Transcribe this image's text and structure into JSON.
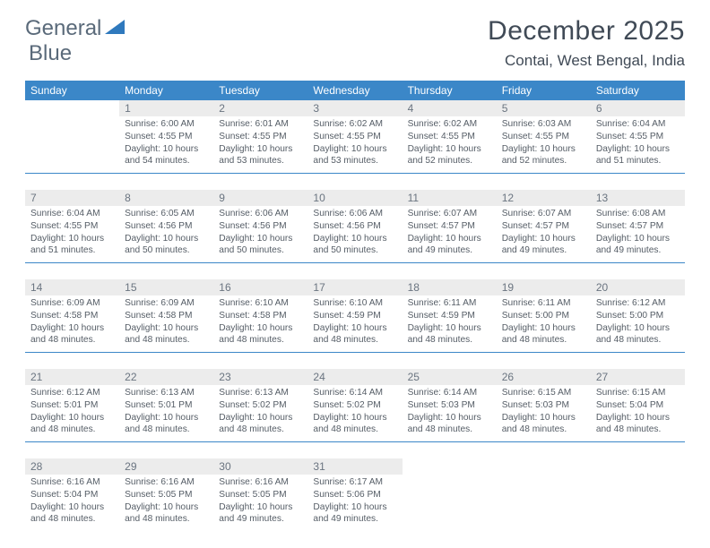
{
  "logo": {
    "word1": "General",
    "word2": "Blue"
  },
  "title": "December 2025",
  "location": "Contai, West Bengal, India",
  "colors": {
    "header_bg": "#3b87c8",
    "header_text": "#ffffff",
    "daynum_bg": "#ececec",
    "daynum_text": "#6a7480",
    "cell_text": "#555d66",
    "rule": "#3b87c8",
    "title_text": "#404a56",
    "logo_text": "#5a6a7a",
    "logo_shape": "#2f79bd"
  },
  "weekdays": [
    "Sunday",
    "Monday",
    "Tuesday",
    "Wednesday",
    "Thursday",
    "Friday",
    "Saturday"
  ],
  "weeks": [
    {
      "days": [
        null,
        {
          "n": "1",
          "sr": "6:00 AM",
          "ss": "4:55 PM",
          "dl": "10 hours and 54 minutes."
        },
        {
          "n": "2",
          "sr": "6:01 AM",
          "ss": "4:55 PM",
          "dl": "10 hours and 53 minutes."
        },
        {
          "n": "3",
          "sr": "6:02 AM",
          "ss": "4:55 PM",
          "dl": "10 hours and 53 minutes."
        },
        {
          "n": "4",
          "sr": "6:02 AM",
          "ss": "4:55 PM",
          "dl": "10 hours and 52 minutes."
        },
        {
          "n": "5",
          "sr": "6:03 AM",
          "ss": "4:55 PM",
          "dl": "10 hours and 52 minutes."
        },
        {
          "n": "6",
          "sr": "6:04 AM",
          "ss": "4:55 PM",
          "dl": "10 hours and 51 minutes."
        }
      ]
    },
    {
      "days": [
        {
          "n": "7",
          "sr": "6:04 AM",
          "ss": "4:55 PM",
          "dl": "10 hours and 51 minutes."
        },
        {
          "n": "8",
          "sr": "6:05 AM",
          "ss": "4:56 PM",
          "dl": "10 hours and 50 minutes."
        },
        {
          "n": "9",
          "sr": "6:06 AM",
          "ss": "4:56 PM",
          "dl": "10 hours and 50 minutes."
        },
        {
          "n": "10",
          "sr": "6:06 AM",
          "ss": "4:56 PM",
          "dl": "10 hours and 50 minutes."
        },
        {
          "n": "11",
          "sr": "6:07 AM",
          "ss": "4:57 PM",
          "dl": "10 hours and 49 minutes."
        },
        {
          "n": "12",
          "sr": "6:07 AM",
          "ss": "4:57 PM",
          "dl": "10 hours and 49 minutes."
        },
        {
          "n": "13",
          "sr": "6:08 AM",
          "ss": "4:57 PM",
          "dl": "10 hours and 49 minutes."
        }
      ]
    },
    {
      "days": [
        {
          "n": "14",
          "sr": "6:09 AM",
          "ss": "4:58 PM",
          "dl": "10 hours and 48 minutes."
        },
        {
          "n": "15",
          "sr": "6:09 AM",
          "ss": "4:58 PM",
          "dl": "10 hours and 48 minutes."
        },
        {
          "n": "16",
          "sr": "6:10 AM",
          "ss": "4:58 PM",
          "dl": "10 hours and 48 minutes."
        },
        {
          "n": "17",
          "sr": "6:10 AM",
          "ss": "4:59 PM",
          "dl": "10 hours and 48 minutes."
        },
        {
          "n": "18",
          "sr": "6:11 AM",
          "ss": "4:59 PM",
          "dl": "10 hours and 48 minutes."
        },
        {
          "n": "19",
          "sr": "6:11 AM",
          "ss": "5:00 PM",
          "dl": "10 hours and 48 minutes."
        },
        {
          "n": "20",
          "sr": "6:12 AM",
          "ss": "5:00 PM",
          "dl": "10 hours and 48 minutes."
        }
      ]
    },
    {
      "days": [
        {
          "n": "21",
          "sr": "6:12 AM",
          "ss": "5:01 PM",
          "dl": "10 hours and 48 minutes."
        },
        {
          "n": "22",
          "sr": "6:13 AM",
          "ss": "5:01 PM",
          "dl": "10 hours and 48 minutes."
        },
        {
          "n": "23",
          "sr": "6:13 AM",
          "ss": "5:02 PM",
          "dl": "10 hours and 48 minutes."
        },
        {
          "n": "24",
          "sr": "6:14 AM",
          "ss": "5:02 PM",
          "dl": "10 hours and 48 minutes."
        },
        {
          "n": "25",
          "sr": "6:14 AM",
          "ss": "5:03 PM",
          "dl": "10 hours and 48 minutes."
        },
        {
          "n": "26",
          "sr": "6:15 AM",
          "ss": "5:03 PM",
          "dl": "10 hours and 48 minutes."
        },
        {
          "n": "27",
          "sr": "6:15 AM",
          "ss": "5:04 PM",
          "dl": "10 hours and 48 minutes."
        }
      ]
    },
    {
      "days": [
        {
          "n": "28",
          "sr": "6:16 AM",
          "ss": "5:04 PM",
          "dl": "10 hours and 48 minutes."
        },
        {
          "n": "29",
          "sr": "6:16 AM",
          "ss": "5:05 PM",
          "dl": "10 hours and 48 minutes."
        },
        {
          "n": "30",
          "sr": "6:16 AM",
          "ss": "5:05 PM",
          "dl": "10 hours and 49 minutes."
        },
        {
          "n": "31",
          "sr": "6:17 AM",
          "ss": "5:06 PM",
          "dl": "10 hours and 49 minutes."
        },
        null,
        null,
        null
      ]
    }
  ],
  "labels": {
    "sunrise": "Sunrise:",
    "sunset": "Sunset:",
    "daylight": "Daylight:"
  }
}
